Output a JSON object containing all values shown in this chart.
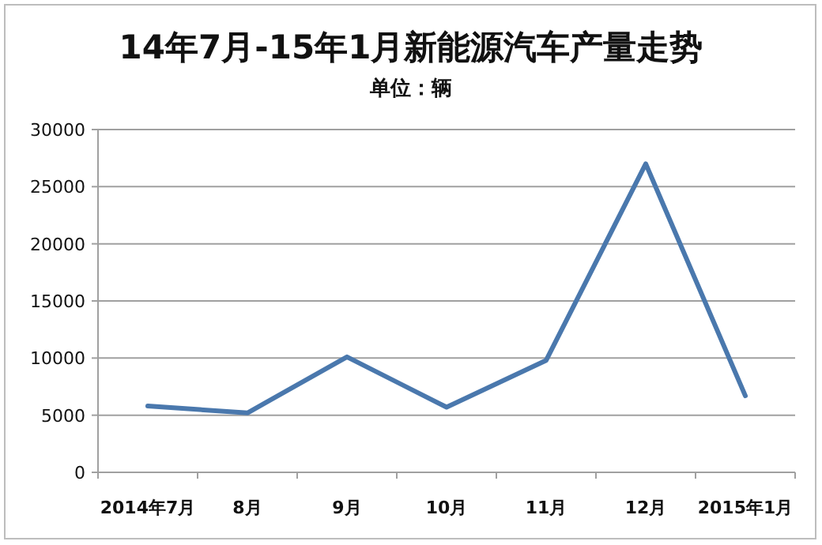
{
  "chart_data": {
    "type": "line",
    "title": "14年7月-15年1月新能源汽车产量走势",
    "subtitle": "单位：辆",
    "categories": [
      "2014年7月",
      "8月",
      "9月",
      "10月",
      "11月",
      "12月",
      "2015年1月"
    ],
    "series": [
      {
        "color": "#4a78ad",
        "values": [
          5800,
          5200,
          10100,
          5700,
          9800,
          27000,
          6700
        ]
      }
    ],
    "ylim": [
      0,
      30000
    ],
    "yticks": [
      0,
      5000,
      10000,
      15000,
      20000,
      25000,
      30000
    ],
    "grid": "y",
    "marker": "none",
    "line_style": "solid"
  }
}
